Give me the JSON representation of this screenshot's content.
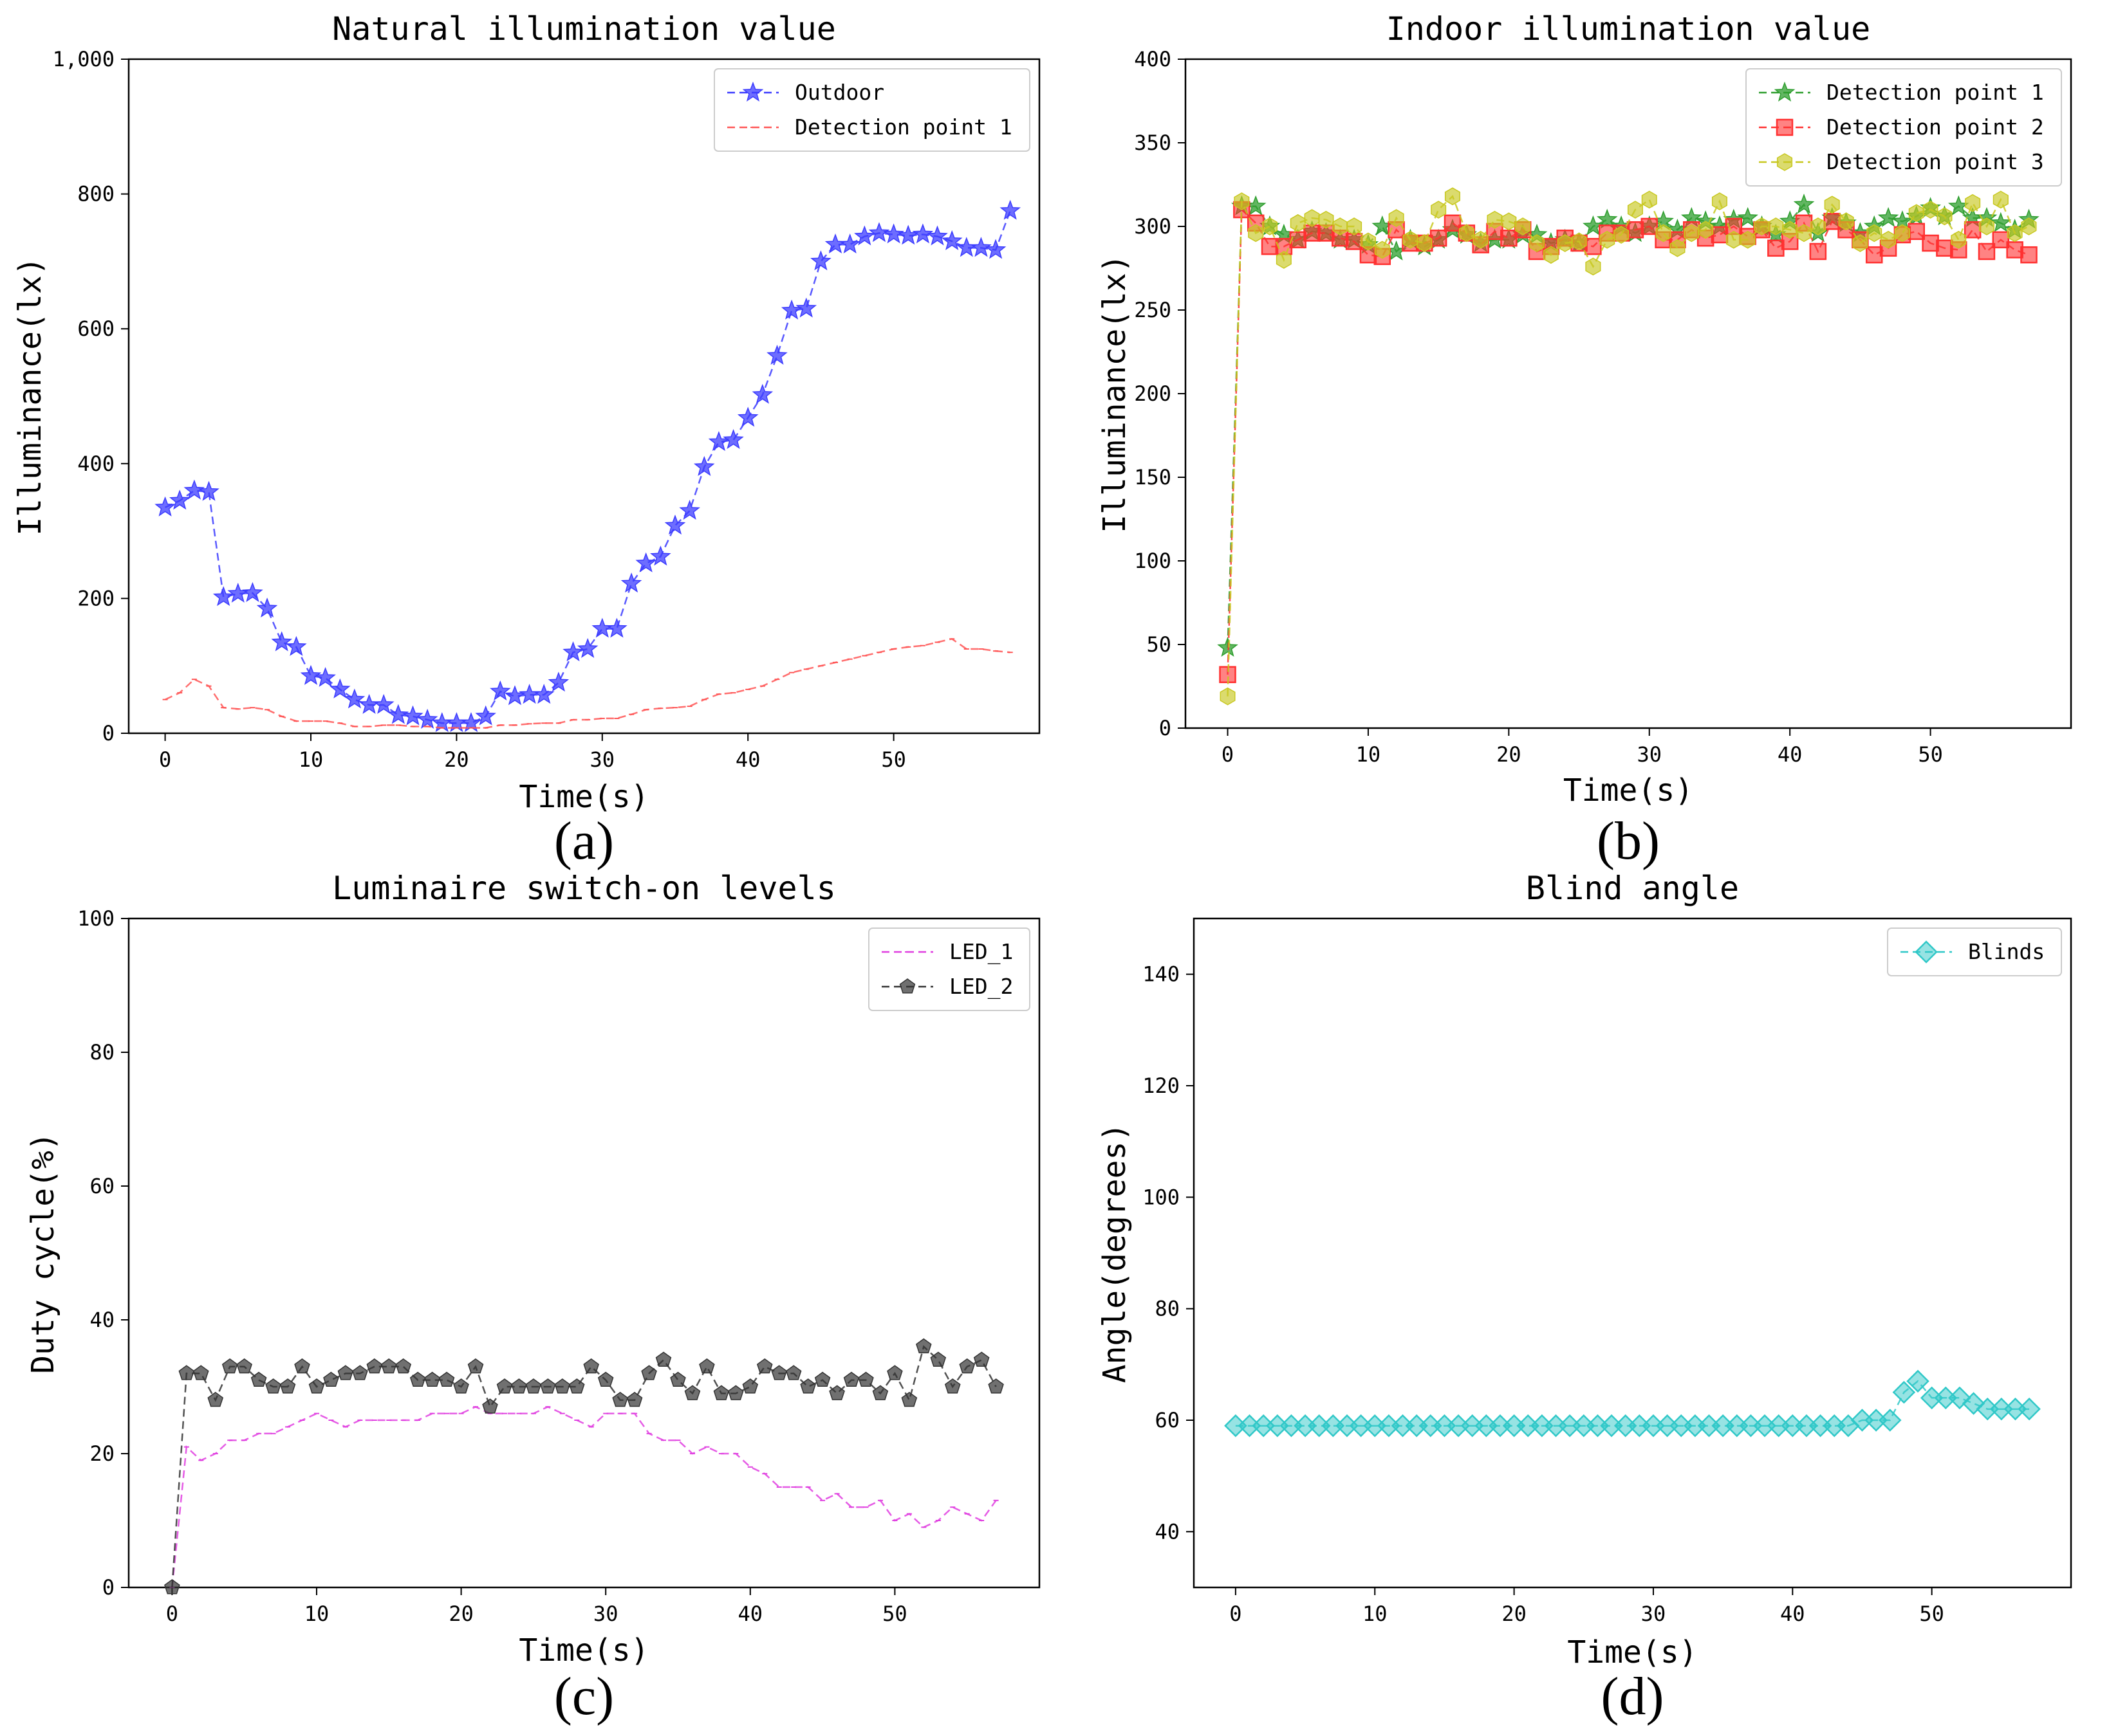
{
  "colors": {
    "outdoor": "#3c3cff",
    "detection1_a": "#ff5555",
    "detection1_b": "#2e9e2e",
    "detection2": "#ff3030",
    "detection3": "#c8c820",
    "led1": "#e040e0",
    "led2": "#333333",
    "blinds": "#30c8c8"
  },
  "chart_data": [
    {
      "id": "a",
      "type": "line",
      "panel_label": "(a)",
      "title": "Natural illumination value",
      "xlabel": "Time(s)",
      "ylabel": "Illuminance(lx)",
      "xlim": [
        -2.5,
        60
      ],
      "ylim": [
        0,
        1000
      ],
      "xticks": [
        0,
        10,
        20,
        30,
        40,
        50
      ],
      "yticks": [
        0,
        200,
        400,
        600,
        800,
        1000
      ],
      "ytick_labels": [
        "0",
        "200",
        "400",
        "600",
        "800",
        "1,000"
      ],
      "legend_position": "top-right",
      "series": [
        {
          "name": "Outdoor",
          "color": "#3c3cff",
          "marker": "star",
          "values": [
            335,
            345,
            360,
            358,
            202,
            207,
            208,
            185,
            135,
            128,
            85,
            82,
            65,
            50,
            42,
            42,
            27,
            25,
            20,
            15,
            15,
            15,
            25,
            62,
            55,
            57,
            57,
            75,
            120,
            125,
            155,
            155,
            222,
            252,
            262,
            308,
            330,
            395,
            432,
            435,
            468,
            502,
            560,
            627,
            630,
            700,
            725,
            725,
            737,
            742,
            740,
            738,
            740,
            737,
            730,
            720,
            720,
            717,
            775
          ]
        },
        {
          "name": "Detection point 1",
          "color": "#ff5555",
          "marker": "tick",
          "values": [
            50,
            60,
            80,
            70,
            38,
            36,
            38,
            35,
            25,
            18,
            18,
            18,
            15,
            10,
            10,
            12,
            12,
            10,
            10,
            8,
            8,
            8,
            8,
            12,
            12,
            14,
            15,
            15,
            20,
            20,
            22,
            22,
            28,
            35,
            37,
            38,
            40,
            50,
            58,
            60,
            65,
            70,
            80,
            90,
            95,
            100,
            105,
            110,
            115,
            120,
            125,
            128,
            130,
            135,
            140,
            125,
            125,
            122,
            120
          ]
        }
      ]
    },
    {
      "id": "b",
      "type": "line",
      "panel_label": "(b)",
      "title": "Indoor illumination value",
      "xlabel": "Time(s)",
      "ylabel": "Illuminance(lx)",
      "xlim": [
        -3,
        60
      ],
      "ylim": [
        0,
        400
      ],
      "xticks": [
        0,
        10,
        20,
        30,
        40,
        50
      ],
      "yticks": [
        0,
        50,
        100,
        150,
        200,
        250,
        300,
        350,
        400
      ],
      "ytick_labels": [
        "0",
        "50",
        "100",
        "150",
        "200",
        "250",
        "300",
        "350",
        "400"
      ],
      "legend_position": "top-right",
      "series": [
        {
          "name": "Detection point 1",
          "color": "#2e9e2e",
          "marker": "star",
          "values": [
            48,
            312,
            312,
            300,
            295,
            292,
            297,
            296,
            292,
            292,
            289,
            300,
            285,
            292,
            288,
            292,
            298,
            295,
            290,
            292,
            292,
            295,
            295,
            290,
            292,
            290,
            300,
            304,
            300,
            296,
            300,
            303,
            298,
            305,
            303,
            300,
            304,
            305,
            300,
            295,
            303,
            313,
            296,
            305,
            302,
            296,
            300,
            305,
            303,
            306,
            311,
            306,
            312,
            305,
            305,
            302,
            298,
            304
          ]
        },
        {
          "name": "Detection point 2",
          "color": "#ff3030",
          "marker": "square",
          "values": [
            32,
            310,
            302,
            288,
            288,
            292,
            296,
            296,
            293,
            291,
            283,
            282,
            298,
            290,
            290,
            293,
            302,
            296,
            289,
            297,
            293,
            298,
            285,
            288,
            293,
            290,
            288,
            296,
            296,
            298,
            300,
            292,
            292,
            298,
            293,
            295,
            300,
            294,
            298,
            287,
            291,
            302,
            285,
            303,
            298,
            292,
            283,
            287,
            295,
            297,
            290,
            287,
            286,
            298,
            285,
            292,
            286,
            283
          ]
        },
        {
          "name": "Detection point 3",
          "color": "#c8c820",
          "marker": "hexagon",
          "values": [
            19,
            315,
            296,
            300,
            280,
            302,
            305,
            304,
            300,
            300,
            291,
            286,
            305,
            292,
            290,
            310,
            318,
            296,
            292,
            304,
            303,
            300,
            290,
            283,
            290,
            291,
            276,
            292,
            295,
            310,
            316,
            296,
            287,
            296,
            298,
            315,
            292,
            292,
            300,
            300,
            298,
            296,
            300,
            313,
            303,
            290,
            296,
            292,
            296,
            308,
            310,
            306,
            292,
            314,
            300,
            316,
            296,
            300
          ]
        }
      ]
    },
    {
      "id": "c",
      "type": "line",
      "panel_label": "(c)",
      "title": "Luminaire switch-on levels",
      "xlabel": "Time(s)",
      "ylabel": "Duty cycle(%)",
      "xlim": [
        -3,
        60
      ],
      "ylim": [
        0,
        100
      ],
      "xticks": [
        0,
        10,
        20,
        30,
        40,
        50
      ],
      "yticks": [
        0,
        20,
        40,
        60,
        80,
        100
      ],
      "ytick_labels": [
        "0",
        "20",
        "40",
        "60",
        "80",
        "100"
      ],
      "legend_position": "top-right",
      "series": [
        {
          "name": "LED_1",
          "color": "#e040e0",
          "marker": "tick",
          "values": [
            0,
            21,
            19,
            20,
            22,
            22,
            23,
            23,
            24,
            25,
            26,
            25,
            24,
            25,
            25,
            25,
            25,
            25,
            26,
            26,
            26,
            27,
            26,
            26,
            26,
            26,
            27,
            26,
            25,
            24,
            26,
            26,
            26,
            23,
            22,
            22,
            20,
            21,
            20,
            20,
            18,
            17,
            15,
            15,
            15,
            13,
            14,
            12,
            12,
            13,
            10,
            11,
            9,
            10,
            12,
            11,
            10,
            13
          ]
        },
        {
          "name": "LED_2",
          "color": "#333333",
          "marker": "pentagon",
          "values": [
            0,
            32,
            32,
            28,
            33,
            33,
            31,
            30,
            30,
            33,
            30,
            31,
            32,
            32,
            33,
            33,
            33,
            31,
            31,
            31,
            30,
            33,
            27,
            30,
            30,
            30,
            30,
            30,
            30,
            33,
            31,
            28,
            28,
            32,
            34,
            31,
            29,
            33,
            29,
            29,
            30,
            33,
            32,
            32,
            30,
            31,
            29,
            31,
            31,
            29,
            32,
            28,
            36,
            34,
            30,
            33,
            34,
            30
          ]
        }
      ]
    },
    {
      "id": "d",
      "type": "line",
      "panel_label": "(d)",
      "title": "Blind angle",
      "xlabel": "Time(s)",
      "ylabel": "Angle(degrees)",
      "xlim": [
        -3,
        60
      ],
      "ylim": [
        30,
        150
      ],
      "xticks": [
        0,
        10,
        20,
        30,
        40,
        50
      ],
      "yticks": [
        40,
        60,
        80,
        100,
        120,
        140
      ],
      "ytick_labels": [
        "40",
        "60",
        "80",
        "100",
        "120",
        "140"
      ],
      "legend_position": "top-right",
      "series": [
        {
          "name": "Blinds",
          "color": "#30c8c8",
          "marker": "diamond",
          "values": [
            59,
            59,
            59,
            59,
            59,
            59,
            59,
            59,
            59,
            59,
            59,
            59,
            59,
            59,
            59,
            59,
            59,
            59,
            59,
            59,
            59,
            59,
            59,
            59,
            59,
            59,
            59,
            59,
            59,
            59,
            59,
            59,
            59,
            59,
            59,
            59,
            59,
            59,
            59,
            59,
            59,
            59,
            59,
            59,
            59,
            60,
            60,
            60,
            65,
            67,
            64,
            64,
            64,
            63,
            62,
            62,
            62,
            62
          ]
        }
      ]
    }
  ]
}
